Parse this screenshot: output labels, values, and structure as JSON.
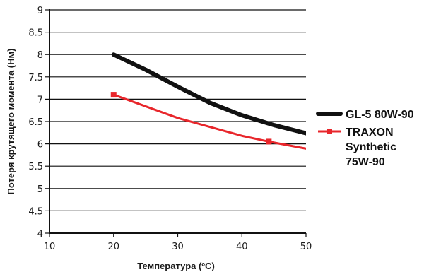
{
  "chart_data": {
    "type": "line",
    "title": "",
    "xlabel": "Температура (ºC)",
    "ylabel": "Потеря крутящего момента (Нм)",
    "xlim": [
      10,
      50
    ],
    "ylim": [
      4,
      9
    ],
    "x_ticks": [
      "10",
      "20",
      "30",
      "40",
      "50"
    ],
    "y_ticks": [
      "4",
      "4.5",
      "5",
      "5.5",
      "6",
      "6.5",
      "7",
      "7.5",
      "8",
      "8.5",
      "9"
    ],
    "grid": "horizontal",
    "legend_position": "right",
    "series": [
      {
        "name": "GL-5 80W-90",
        "color": "#111111",
        "marker": "none",
        "x": [
          20,
          25,
          30,
          35,
          40,
          45,
          50.5
        ],
        "y": [
          8.0,
          7.66,
          7.28,
          6.92,
          6.64,
          6.42,
          6.22
        ]
      },
      {
        "name": "TRAXON Synthetic 75W-90",
        "color": "#e8262b",
        "marker": "square",
        "x": [
          20,
          30,
          40,
          44.2,
          50.5
        ],
        "y": [
          7.1,
          6.58,
          6.18,
          6.05,
          5.88
        ],
        "marker_x": [
          20,
          44.2
        ],
        "marker_y": [
          7.1,
          6.05
        ]
      }
    ]
  }
}
